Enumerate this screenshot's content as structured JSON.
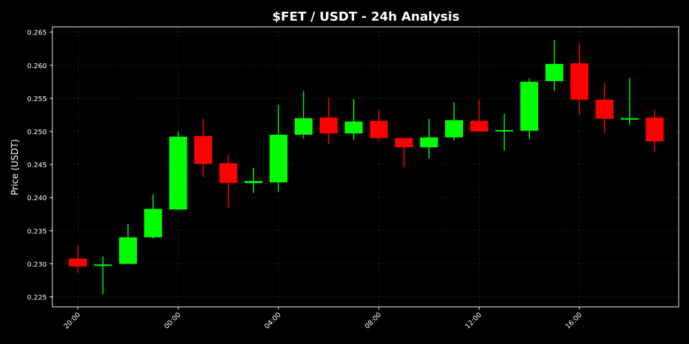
{
  "chart_data": {
    "type": "candlestick",
    "title": "$FET / USDT - 24h Analysis",
    "xlabel": "",
    "ylabel": "Price (USDT)",
    "ylim": [
      0.2235,
      0.2658
    ],
    "y_ticks": [
      "0.225",
      "0.230",
      "0.235",
      "0.240",
      "0.245",
      "0.250",
      "0.255",
      "0.260",
      "0.265"
    ],
    "x_ticks": [
      {
        "label": "20:00",
        "index": 0
      },
      {
        "label": "00:00",
        "index": 4
      },
      {
        "label": "04:00",
        "index": 8
      },
      {
        "label": "08:00",
        "index": 12
      },
      {
        "label": "12:00",
        "index": 16
      },
      {
        "label": "16:00",
        "index": 20
      }
    ],
    "grid": true,
    "colors": {
      "up": "#00ff00",
      "down": "#ff0000",
      "background": "#000000",
      "text": "#ffffff",
      "grid": "#222222"
    },
    "candles": [
      {
        "time": "20:00",
        "open": 0.2308,
        "high": 0.2328,
        "low": 0.2286,
        "close": 0.2296
      },
      {
        "time": "21:00",
        "open": 0.2297,
        "high": 0.2311,
        "low": 0.2254,
        "close": 0.2299
      },
      {
        "time": "22:00",
        "open": 0.23,
        "high": 0.236,
        "low": 0.2299,
        "close": 0.234
      },
      {
        "time": "23:00",
        "open": 0.234,
        "high": 0.2405,
        "low": 0.2338,
        "close": 0.2383
      },
      {
        "time": "00:00",
        "open": 0.2382,
        "high": 0.25,
        "low": 0.2381,
        "close": 0.2492
      },
      {
        "time": "01:00",
        "open": 0.2493,
        "high": 0.2519,
        "low": 0.2431,
        "close": 0.2451
      },
      {
        "time": "02:00",
        "open": 0.2452,
        "high": 0.2466,
        "low": 0.2385,
        "close": 0.2422
      },
      {
        "time": "03:00",
        "open": 0.2422,
        "high": 0.2445,
        "low": 0.2407,
        "close": 0.2425
      },
      {
        "time": "04:00",
        "open": 0.2423,
        "high": 0.254,
        "low": 0.2409,
        "close": 0.2495
      },
      {
        "time": "05:00",
        "open": 0.2495,
        "high": 0.2561,
        "low": 0.2489,
        "close": 0.252
      },
      {
        "time": "06:00",
        "open": 0.2521,
        "high": 0.2551,
        "low": 0.2481,
        "close": 0.2497
      },
      {
        "time": "07:00",
        "open": 0.2497,
        "high": 0.2549,
        "low": 0.2487,
        "close": 0.2515
      },
      {
        "time": "08:00",
        "open": 0.2516,
        "high": 0.2533,
        "low": 0.2485,
        "close": 0.249
      },
      {
        "time": "09:00",
        "open": 0.249,
        "high": 0.249,
        "low": 0.2446,
        "close": 0.2476
      },
      {
        "time": "10:00",
        "open": 0.2476,
        "high": 0.2519,
        "low": 0.2459,
        "close": 0.2491
      },
      {
        "time": "11:00",
        "open": 0.2491,
        "high": 0.2544,
        "low": 0.2486,
        "close": 0.2517
      },
      {
        "time": "12:00",
        "open": 0.2516,
        "high": 0.2548,
        "low": 0.2499,
        "close": 0.25
      },
      {
        "time": "13:00",
        "open": 0.25,
        "high": 0.2527,
        "low": 0.2471,
        "close": 0.2502
      },
      {
        "time": "14:00",
        "open": 0.2501,
        "high": 0.258,
        "low": 0.2489,
        "close": 0.2575
      },
      {
        "time": "15:00",
        "open": 0.2576,
        "high": 0.2638,
        "low": 0.2561,
        "close": 0.2602
      },
      {
        "time": "16:00",
        "open": 0.2603,
        "high": 0.2633,
        "low": 0.2525,
        "close": 0.2548
      },
      {
        "time": "17:00",
        "open": 0.2548,
        "high": 0.2574,
        "low": 0.2497,
        "close": 0.2519
      },
      {
        "time": "18:00",
        "open": 0.2518,
        "high": 0.2581,
        "low": 0.251,
        "close": 0.252
      },
      {
        "time": "19:00",
        "open": 0.2521,
        "high": 0.2533,
        "low": 0.247,
        "close": 0.2485
      }
    ]
  }
}
